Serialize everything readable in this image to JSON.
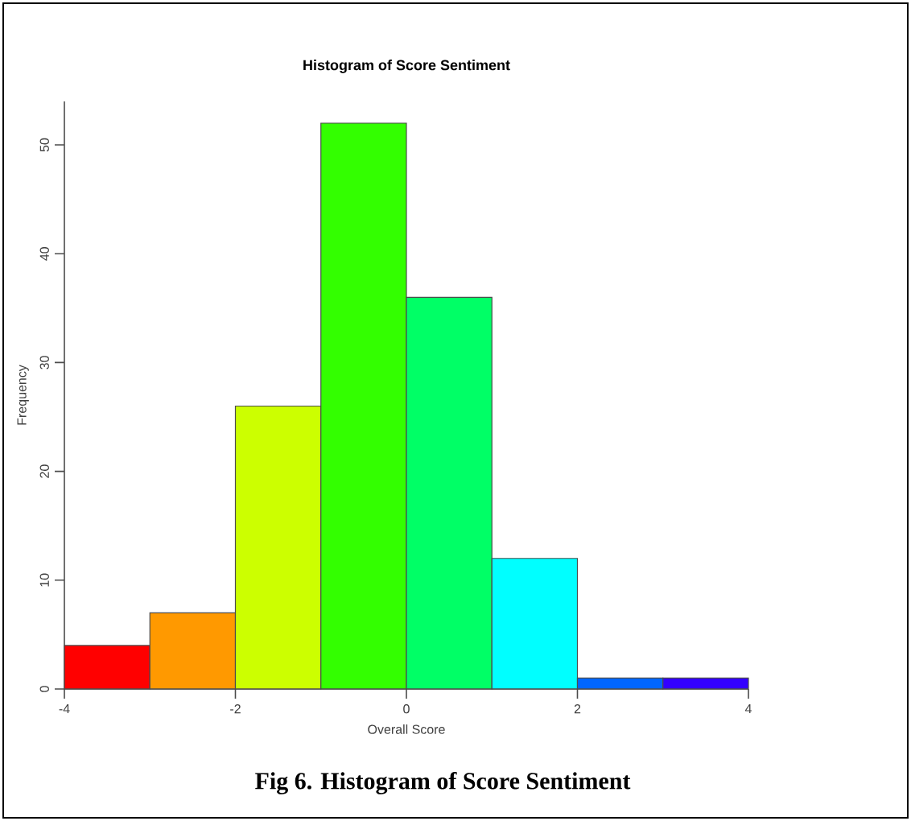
{
  "chart_data": {
    "type": "histogram",
    "title": "Histogram of Score Sentiment",
    "xlabel": "Overall Score",
    "ylabel": "Frequency",
    "bins": [
      -4,
      -3,
      -2,
      -1,
      0,
      1,
      2,
      3,
      4
    ],
    "values": [
      4,
      7,
      26,
      52,
      36,
      12,
      1,
      1
    ],
    "colors": [
      "#ff0000",
      "#ff9900",
      "#ccff00",
      "#33ff00",
      "#00ff66",
      "#00ffff",
      "#0066ff",
      "#3300ff"
    ],
    "xlim": [
      -4,
      4
    ],
    "ylim": [
      0,
      54
    ],
    "xticks": [
      -4,
      -2,
      0,
      2,
      4
    ],
    "yticks": [
      0,
      10,
      20,
      30,
      40,
      50
    ],
    "grid": false,
    "annotations": [
      "Fig 6. Histogram of Score Sentiment"
    ]
  }
}
